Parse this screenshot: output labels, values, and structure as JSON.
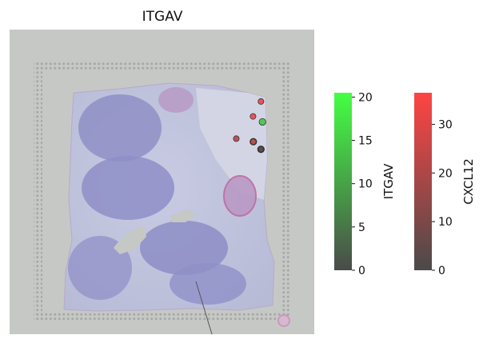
{
  "chart_data": {
    "type": "scatter",
    "title": "ITGAV",
    "background": "tissue-histology-image",
    "colormaps": [
      {
        "name": "ITGAV",
        "low_color": "#4a4a4a",
        "high_color": "#44ff44",
        "range": [
          0,
          20.5
        ],
        "ticks": [
          "0",
          "5",
          "10",
          "15",
          "20"
        ]
      },
      {
        "name": "CXCL12",
        "low_color": "#4a4a4a",
        "high_color": "#ff4444",
        "range": [
          0,
          36.5
        ],
        "ticks": [
          "0",
          "10",
          "20",
          "30"
        ]
      }
    ],
    "spots": [
      {
        "x": 0.825,
        "y": 0.236,
        "ITGAV": 0,
        "CXCL12": 34
      },
      {
        "x": 0.799,
        "y": 0.285,
        "ITGAV": 0,
        "CXCL12": 33
      },
      {
        "x": 0.83,
        "y": 0.303,
        "ITGAV": 14,
        "CXCL12": 0
      },
      {
        "x": 0.744,
        "y": 0.358,
        "ITGAV": 0,
        "CXCL12": 22
      },
      {
        "x": 0.8,
        "y": 0.368,
        "ITGAV": 10,
        "CXCL12": 26
      },
      {
        "x": 0.825,
        "y": 0.393,
        "ITGAV": 4,
        "CXCL12": 4
      }
    ]
  }
}
